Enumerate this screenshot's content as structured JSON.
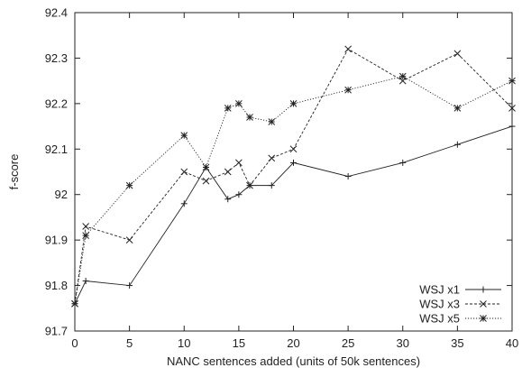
{
  "chart_data": {
    "type": "line",
    "title": "",
    "xlabel": "NANC sentences added (units of 50k sentences)",
    "ylabel": "f-score",
    "xlim": [
      0,
      40
    ],
    "ylim": [
      91.7,
      92.4
    ],
    "xticks": [
      0,
      5,
      10,
      15,
      20,
      25,
      30,
      35,
      40
    ],
    "yticks": [
      91.7,
      91.8,
      91.9,
      92.0,
      92.1,
      92.2,
      92.3,
      92.4
    ],
    "xtick_labels": [
      "0",
      "5",
      "10",
      "15",
      "20",
      "25",
      "30",
      "35",
      "40"
    ],
    "ytick_labels": [
      "91.7",
      "91.8",
      "91.9",
      "92",
      "92.1",
      "92.2",
      "92.3",
      "92.4"
    ],
    "grid": false,
    "legend_position": "bottom-right",
    "series": [
      {
        "name": "WSJ x1",
        "marker": "plus",
        "line_style": "solid",
        "x": [
          0,
          1,
          5,
          10,
          12,
          14,
          15,
          16,
          18,
          20,
          25,
          30,
          35,
          40
        ],
        "y": [
          91.76,
          91.81,
          91.8,
          91.98,
          92.06,
          91.99,
          92.0,
          92.02,
          92.02,
          92.07,
          92.04,
          92.07,
          92.11,
          92.15
        ]
      },
      {
        "name": "WSJ x3",
        "marker": "x",
        "line_style": "dashed",
        "x": [
          0,
          1,
          5,
          10,
          12,
          14,
          15,
          16,
          18,
          20,
          25,
          30,
          35,
          40
        ],
        "y": [
          91.76,
          91.93,
          91.9,
          92.05,
          92.03,
          92.05,
          92.07,
          92.02,
          92.08,
          92.1,
          92.32,
          92.25,
          92.31,
          92.19
        ]
      },
      {
        "name": "WSJ x5",
        "marker": "star",
        "line_style": "dotted",
        "x": [
          0,
          1,
          5,
          10,
          12,
          14,
          15,
          16,
          18,
          20,
          25,
          30,
          35,
          40
        ],
        "y": [
          91.76,
          91.91,
          92.02,
          92.13,
          92.06,
          92.19,
          92.2,
          92.17,
          92.16,
          92.2,
          92.23,
          92.26,
          92.19,
          92.25
        ]
      }
    ]
  }
}
